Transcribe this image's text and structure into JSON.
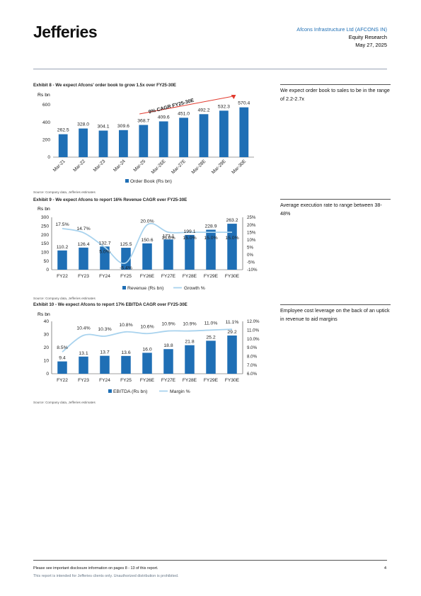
{
  "header": {
    "logo": "Jefferies",
    "company": "Afcons Infrastructure Ltd (AFCONS IN)",
    "dept": "Equity Research",
    "date": "May 27, 2025"
  },
  "exhibits": [
    {
      "title": "Exhibit 8 - We expect Afcons' order book to grow 1.5x over FY25-30E",
      "unit": "Rs bn",
      "source": "Source: Company data, Jefferies estimates",
      "side_note": "We expect order book to sales to be in the range of 2.2-2.7x"
    },
    {
      "title": "Exhibit 9 - We expect Afcons to report 16% Revenue CAGR over FY25-30E",
      "unit": "Rs bn",
      "source": "Source: Company data, Jefferies estimates",
      "side_note": "Average execution rate to range between 38-48%"
    },
    {
      "title": "Exhibit 10 - We expect Afcons to report 17% EBITDA CAGR over FY25-30E",
      "unit": "Rs bn",
      "source": "Source: Company data, Jefferies estimates",
      "side_note": "Employee cost leverage on the back of an uptick in revenue to aid margins"
    }
  ],
  "chart_data": [
    {
      "type": "bar",
      "categories": [
        "Mar-21",
        "Mar-22",
        "Mar-23",
        "Mar-24",
        "Mar-25",
        "Mar-26E",
        "Mar-27E",
        "Mar-28E",
        "Mar-29E",
        "Mar-30E"
      ],
      "series": [
        {
          "name": "Order Book (Rs bn)",
          "values": [
            262.5,
            328.0,
            304.1,
            309.6,
            368.7,
            409.6,
            451.0,
            492.2,
            532.3,
            570.4
          ]
        }
      ],
      "value_labels": [
        "262.5",
        "328.0",
        "304.1",
        "309.6",
        "368.7",
        "409.6",
        "451.0",
        "492.2",
        "532.3",
        "570.4"
      ],
      "ylim": [
        0,
        600
      ],
      "yticks": [
        "0",
        "200",
        "400",
        "600"
      ],
      "annotation": "9% CAGR FY25-30E",
      "legend": "bottom",
      "colors": {
        "bar": "#1f6fb5",
        "arrow": "#e23b2f"
      }
    },
    {
      "type": "bar",
      "categories": [
        "FY22",
        "FY23",
        "FY24",
        "FY25",
        "FY26E",
        "FY27E",
        "FY28E",
        "FY29E",
        "FY30E"
      ],
      "series": [
        {
          "name": "Revenue (Rs bn)",
          "values": [
            110.2,
            126.4,
            132.7,
            125.5,
            150.6,
            173.1,
            199.1,
            228.9,
            263.2
          ]
        },
        {
          "name": "Growth %",
          "values": [
            17.5,
            14.7,
            5.0,
            -5.4,
            20.0,
            15.0,
            15.0,
            15.0,
            15.0
          ]
        }
      ],
      "value_labels": [
        "110.2",
        "126.4",
        "132.7",
        "125.5",
        "150.6",
        "173.1",
        "199.1",
        "228.9",
        "263.2"
      ],
      "growth_labels": [
        "17.5%",
        "14.7%",
        "5.0%",
        "-5.4%",
        "20.0%",
        "15.0%",
        "15.0%",
        "15.0%",
        "15.0%"
      ],
      "ylim": [
        0,
        300
      ],
      "yticks": [
        "0",
        "50",
        "100",
        "150",
        "200",
        "250",
        "300"
      ],
      "y2lim": [
        -10,
        25
      ],
      "y2ticks": [
        "-10%",
        "-5%",
        "0%",
        "5%",
        "10%",
        "15%",
        "20%",
        "25%"
      ],
      "legend": "bottom",
      "colors": {
        "bar": "#1f6fb5",
        "line": "#a9d3ee"
      }
    },
    {
      "type": "bar",
      "categories": [
        "FY22",
        "FY23",
        "FY24",
        "FY25",
        "FY26E",
        "FY27E",
        "FY28E",
        "FY29E",
        "FY30E"
      ],
      "series": [
        {
          "name": "EBITDA (Rs bn)",
          "values": [
            9.4,
            13.1,
            13.7,
            13.6,
            16.0,
            18.8,
            21.8,
            25.2,
            29.2
          ]
        },
        {
          "name": "Margin %",
          "values": [
            8.5,
            10.4,
            10.3,
            10.8,
            10.6,
            10.9,
            10.9,
            11.0,
            11.1
          ]
        }
      ],
      "value_labels": [
        "9.4",
        "13.1",
        "13.7",
        "13.6",
        "16.0",
        "18.8",
        "21.8",
        "25.2",
        "29.2"
      ],
      "margin_labels": [
        "8.5%",
        "10.4%",
        "10.3%",
        "10.8%",
        "10.6%",
        "10.9%",
        "10.9%",
        "11.0%",
        "11.1%"
      ],
      "ylim": [
        0,
        40
      ],
      "yticks": [
        "0",
        "10",
        "20",
        "30",
        "40"
      ],
      "y2lim": [
        6,
        12
      ],
      "y2ticks": [
        "6.0%",
        "7.0%",
        "8.0%",
        "9.0%",
        "10.0%",
        "11.0%",
        "12.0%"
      ],
      "legend": "bottom",
      "colors": {
        "bar": "#1f6fb5",
        "line": "#a9d3ee"
      }
    }
  ],
  "footer": {
    "disclosure": "Please see important disclosure information on pages 8 - 13 of this report.",
    "notice": "This report is intended for Jefferies clients only. Unauthorized distribution is prohibited.",
    "page": "4"
  }
}
